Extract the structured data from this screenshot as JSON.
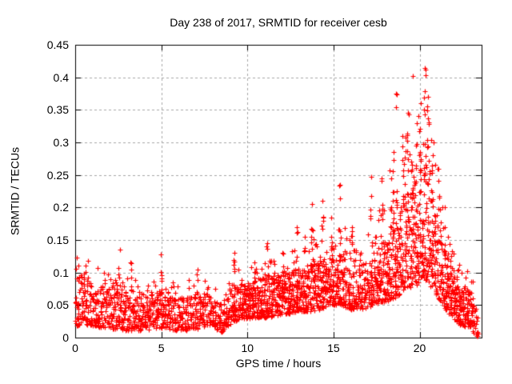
{
  "chart_data": {
    "type": "scatter",
    "title": "Day 238 of 2017, SRMTID for receiver cesb",
    "xlabel": "GPS time / hours",
    "ylabel": "SRMTID / TECUs",
    "xlim": [
      0,
      23.6
    ],
    "ylim": [
      0,
      0.45
    ],
    "x_ticks": {
      "values": [
        0,
        5,
        10,
        15,
        20
      ],
      "labels": [
        "0",
        "5",
        "10",
        "15",
        "20"
      ]
    },
    "y_ticks": {
      "values": [
        0,
        0.05,
        0.1,
        0.15,
        0.2,
        0.25,
        0.3,
        0.35,
        0.4,
        0.45
      ],
      "labels": [
        "0",
        "0.05",
        "0.1",
        "0.15",
        "0.2",
        "0.25",
        "0.3",
        "0.35",
        "0.4",
        "0.45"
      ]
    },
    "grid": true,
    "legend": "none",
    "marker": {
      "shape": "plus",
      "color": "#ff0000",
      "size": 7
    },
    "colors": {
      "marker": "#ff0000",
      "grid": "#a6a6a6",
      "border": "#000000",
      "background": "#ffffff",
      "text": "#000000"
    },
    "seed": 20170238,
    "x_data_range": [
      0,
      23.4
    ],
    "envelope_note": "columns are [hour, dense_band_low_TECU, dense_band_high_TECU, sparse_tail_peak_TECU, points_per_0.1h]",
    "envelope": [
      [
        0.0,
        0.018,
        0.095,
        0.125,
        10
      ],
      [
        0.7,
        0.02,
        0.1,
        0.12,
        10
      ],
      [
        1.5,
        0.015,
        0.085,
        0.11,
        10
      ],
      [
        2.5,
        0.012,
        0.08,
        0.1,
        10
      ],
      [
        3.5,
        0.01,
        0.07,
        0.1,
        10
      ],
      [
        4.2,
        0.012,
        0.065,
        0.09,
        10
      ],
      [
        5.0,
        0.015,
        0.075,
        0.1,
        10
      ],
      [
        6.0,
        0.01,
        0.06,
        0.085,
        9
      ],
      [
        7.0,
        0.013,
        0.068,
        0.095,
        9
      ],
      [
        7.8,
        0.02,
        0.068,
        0.09,
        9
      ],
      [
        8.5,
        0.008,
        0.05,
        0.075,
        9
      ],
      [
        9.2,
        0.025,
        0.085,
        0.11,
        12
      ],
      [
        10.0,
        0.03,
        0.08,
        0.105,
        13
      ],
      [
        11.0,
        0.03,
        0.095,
        0.12,
        13
      ],
      [
        12.0,
        0.035,
        0.095,
        0.12,
        13
      ],
      [
        13.0,
        0.04,
        0.105,
        0.14,
        13
      ],
      [
        13.8,
        0.04,
        0.12,
        0.16,
        13
      ],
      [
        14.4,
        0.045,
        0.125,
        0.17,
        13
      ],
      [
        15.0,
        0.05,
        0.12,
        0.16,
        13
      ],
      [
        15.5,
        0.05,
        0.13,
        0.18,
        12
      ],
      [
        16.2,
        0.04,
        0.11,
        0.15,
        11
      ],
      [
        16.8,
        0.045,
        0.115,
        0.15,
        11
      ],
      [
        17.3,
        0.05,
        0.13,
        0.19,
        12
      ],
      [
        17.9,
        0.055,
        0.145,
        0.21,
        14
      ],
      [
        18.5,
        0.06,
        0.17,
        0.26,
        15
      ],
      [
        19.0,
        0.07,
        0.21,
        0.3,
        15
      ],
      [
        19.6,
        0.08,
        0.24,
        0.33,
        15
      ],
      [
        20.1,
        0.08,
        0.26,
        0.35,
        15
      ],
      [
        20.4,
        0.09,
        0.27,
        0.36,
        15
      ],
      [
        20.8,
        0.07,
        0.22,
        0.3,
        15
      ],
      [
        21.3,
        0.05,
        0.15,
        0.22,
        14
      ],
      [
        21.8,
        0.035,
        0.11,
        0.15,
        14
      ],
      [
        22.3,
        0.02,
        0.09,
        0.12,
        15
      ],
      [
        22.9,
        0.015,
        0.075,
        0.1,
        14
      ],
      [
        23.2,
        0.004,
        0.05,
        0.08,
        8
      ],
      [
        23.4,
        0.002,
        0.035,
        0.05,
        6
      ]
    ],
    "spikes_note": "columns are [hour, peak_TECU, n_points_in_column]",
    "spikes": [
      [
        0.05,
        0.123,
        1
      ],
      [
        2.55,
        0.135,
        5
      ],
      [
        3.25,
        0.115,
        4
      ],
      [
        4.97,
        0.128,
        6
      ],
      [
        7.1,
        0.105,
        4
      ],
      [
        9.2,
        0.13,
        5
      ],
      [
        10.4,
        0.115,
        4
      ],
      [
        11.15,
        0.145,
        5
      ],
      [
        12.05,
        0.13,
        4
      ],
      [
        12.9,
        0.17,
        5
      ],
      [
        13.35,
        0.155,
        4
      ],
      [
        13.75,
        0.205,
        7
      ],
      [
        14.35,
        0.21,
        7
      ],
      [
        14.9,
        0.185,
        5
      ],
      [
        15.35,
        0.235,
        8
      ],
      [
        16.05,
        0.17,
        5
      ],
      [
        17.2,
        0.247,
        7
      ],
      [
        17.8,
        0.245,
        7
      ],
      [
        18.3,
        0.257,
        5
      ],
      [
        18.45,
        0.285,
        6
      ],
      [
        18.65,
        0.375,
        8
      ],
      [
        19.0,
        0.31,
        6
      ],
      [
        19.3,
        0.345,
        7
      ],
      [
        19.55,
        0.402,
        8
      ],
      [
        19.8,
        0.33,
        6
      ],
      [
        20.05,
        0.36,
        7
      ],
      [
        20.3,
        0.414,
        9
      ],
      [
        20.5,
        0.37,
        8
      ],
      [
        20.75,
        0.3,
        6
      ],
      [
        21.1,
        0.26,
        5
      ],
      [
        21.45,
        0.2,
        4
      ],
      [
        21.7,
        0.155,
        4
      ]
    ]
  }
}
